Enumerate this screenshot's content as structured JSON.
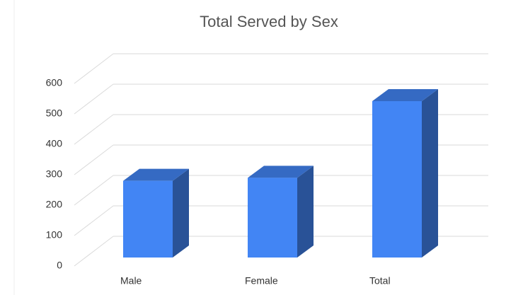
{
  "chart_data": {
    "type": "bar3d",
    "title": "Total Served by Sex",
    "categories": [
      "Male",
      "Female",
      "Total"
    ],
    "values": [
      252,
      262,
      514
    ],
    "color": "#4285f4",
    "ylim": [
      0,
      600
    ],
    "yticks": [
      0,
      100,
      200,
      300,
      400,
      500,
      600
    ],
    "grid": true
  }
}
